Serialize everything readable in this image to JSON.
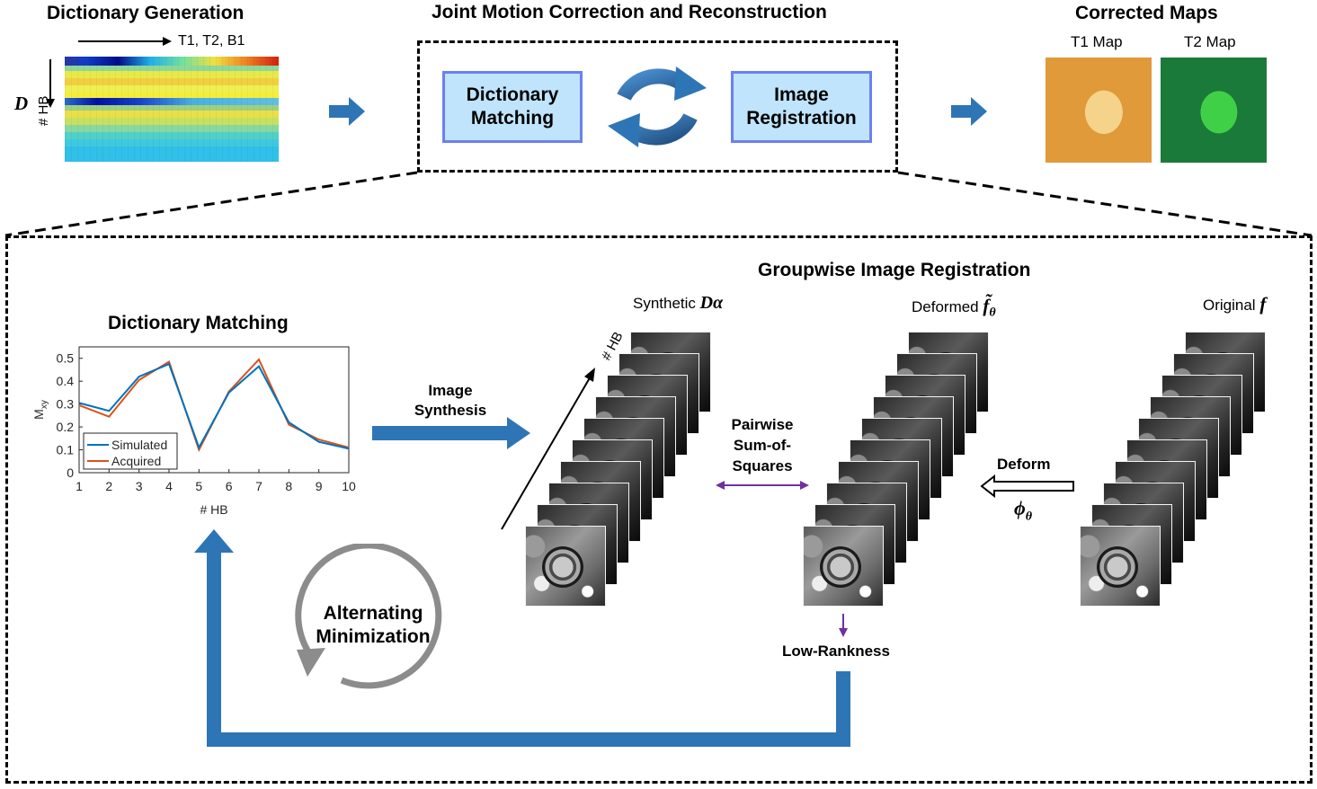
{
  "top": {
    "dict_gen_title": "Dictionary Generation",
    "dict_axis_label": "T1, T2, B1",
    "dict_side_label": "D",
    "dict_hb_label": "# HB",
    "joint_title": "Joint Motion Correction and Reconstruction",
    "box_dict_line1": "Dictionary",
    "box_dict_line2": "Matching",
    "box_reg_line1": "Image",
    "box_reg_line2": "Registration",
    "corrected_title": "Corrected Maps",
    "t1_label": "T1 Map",
    "t2_label": "T2 Map"
  },
  "bottom": {
    "group_title": "Groupwise Image Registration",
    "dm_title": "Dictionary Matching",
    "synth_label_line1": "Image",
    "synth_label_line2": "Synthesis",
    "synthetic_label": "Synthetic",
    "synthetic_symbol": "Dα",
    "deformed_label": "Deformed",
    "deformed_symbol": "f̃",
    "deformed_sub": "θ",
    "original_label": "Original",
    "original_symbol": "f",
    "stack_hb_label": "# HB",
    "pairwise_line1": "Pairwise",
    "pairwise_line2": "Sum-of-",
    "pairwise_line3": "Squares",
    "deform_label": "Deform",
    "phi_symbol": "ϕ",
    "phi_sub": "θ",
    "lowrank_label": "Low-Rankness",
    "alt_line1": "Alternating",
    "alt_line2": "Minimization"
  },
  "colors": {
    "arrow_blue": "#2e75b6",
    "box_fill": "#bfe4fb",
    "box_border": "#6b80f2",
    "purple": "#7030a0",
    "simulated": "#0072bd",
    "acquired": "#d95319"
  },
  "chart_data": {
    "type": "line",
    "x": [
      1,
      2,
      3,
      4,
      5,
      6,
      7,
      8,
      9,
      10
    ],
    "series": [
      {
        "name": "Simulated",
        "values": [
          0.305,
          0.27,
          0.42,
          0.475,
          0.11,
          0.35,
          0.465,
          0.22,
          0.135,
          0.105
        ]
      },
      {
        "name": "Acquired",
        "values": [
          0.295,
          0.245,
          0.405,
          0.485,
          0.1,
          0.355,
          0.495,
          0.21,
          0.145,
          0.11
        ]
      }
    ],
    "xlabel": "# HB",
    "ylabel": "M",
    "ylabel_sub": "xy",
    "xlim": [
      1,
      10
    ],
    "ylim": [
      0,
      0.55
    ],
    "yticks": [
      "0",
      "0.1",
      "0.2",
      "0.3",
      "0.4",
      "0.5"
    ],
    "ytick_values": [
      0,
      0.1,
      0.2,
      0.3,
      0.4,
      0.5
    ],
    "xticks": [
      "1",
      "2",
      "3",
      "4",
      "5",
      "6",
      "7",
      "8",
      "9",
      "10"
    ],
    "legend_position": "bottom-left"
  }
}
